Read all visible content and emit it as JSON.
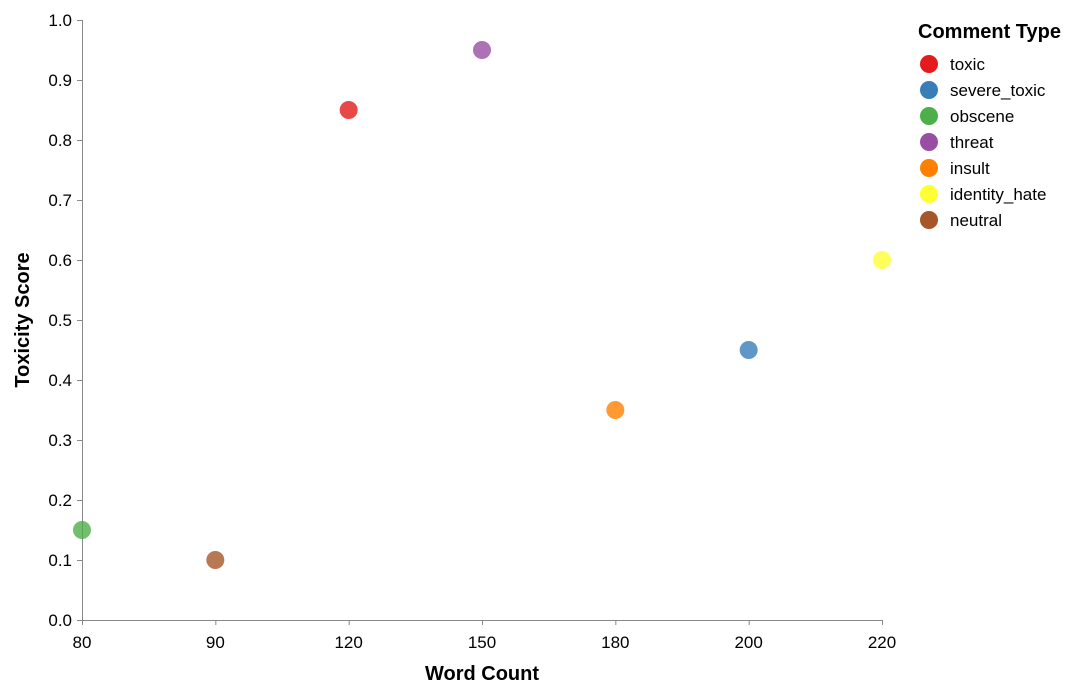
{
  "chart_data": {
    "type": "scatter",
    "title": "",
    "xlabel": "Word Count",
    "ylabel": "Toxicity Score",
    "x_ticks": [
      80,
      90,
      120,
      150,
      180,
      200,
      220
    ],
    "y_ticks": [
      "0.0",
      "0.1",
      "0.2",
      "0.3",
      "0.4",
      "0.5",
      "0.6",
      "0.7",
      "0.8",
      "0.9",
      "1.0"
    ],
    "ylim": [
      0,
      1
    ],
    "x_scale": "ordinal",
    "grid": false,
    "legend_title": "Comment Type",
    "legend_position": "top-right",
    "series": [
      {
        "name": "toxic",
        "color": "#e41a1c",
        "points": [
          {
            "x": 120,
            "y": 0.85
          }
        ]
      },
      {
        "name": "severe_toxic",
        "color": "#377eb8",
        "points": [
          {
            "x": 200,
            "y": 0.45
          }
        ]
      },
      {
        "name": "obscene",
        "color": "#4daf4a",
        "points": [
          {
            "x": 80,
            "y": 0.15
          }
        ]
      },
      {
        "name": "threat",
        "color": "#984ea3",
        "points": [
          {
            "x": 150,
            "y": 0.95
          }
        ]
      },
      {
        "name": "insult",
        "color": "#ff7f00",
        "points": [
          {
            "x": 180,
            "y": 0.35
          }
        ]
      },
      {
        "name": "identity_hate",
        "color": "#ffff33",
        "points": [
          {
            "x": 220,
            "y": 0.6
          }
        ]
      },
      {
        "name": "neutral",
        "color": "#a65628",
        "points": [
          {
            "x": 90,
            "y": 0.1
          }
        ]
      }
    ]
  }
}
